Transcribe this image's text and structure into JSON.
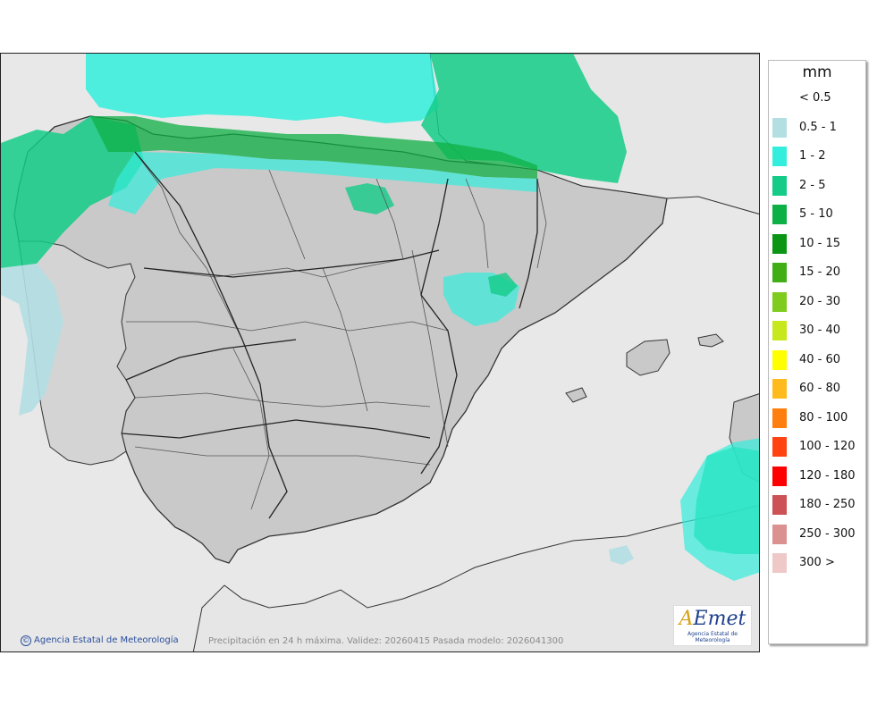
{
  "legend": {
    "unit": "mm",
    "items": [
      {
        "label": "< 0.5",
        "color": "#ffffff"
      },
      {
        "label": "0.5 - 1",
        "color": "#b3dfe3"
      },
      {
        "label": "1 - 2",
        "color": "#33eedc"
      },
      {
        "label": "2 - 5",
        "color": "#14cc88"
      },
      {
        "label": "5 - 10",
        "color": "#0db044"
      },
      {
        "label": "10 - 15",
        "color": "#0a9614"
      },
      {
        "label": "15 - 20",
        "color": "#42ae16"
      },
      {
        "label": "20 - 30",
        "color": "#7fcb1e"
      },
      {
        "label": "30 - 40",
        "color": "#c6e81d"
      },
      {
        "label": "40 - 60",
        "color": "#ffff00"
      },
      {
        "label": "60 - 80",
        "color": "#ffbb1e"
      },
      {
        "label": "80 - 100",
        "color": "#ff7f0e"
      },
      {
        "label": "100 - 120",
        "color": "#ff4412"
      },
      {
        "label": "120 - 180",
        "color": "#ff0000"
      },
      {
        "label": "180 - 250",
        "color": "#cd5256"
      },
      {
        "label": "250 - 300",
        "color": "#dc9191"
      },
      {
        "label": "300 >",
        "color": "#efc8c8"
      }
    ]
  },
  "footer": {
    "credit": "Agencia Estatal de Meteorología",
    "caption": "Precipitación en 24 h máxima. Validez: 20260415 Pasada modelo: 2026041300"
  },
  "logo": {
    "subtitle": "Agencia Estatal de Meteorología"
  }
}
